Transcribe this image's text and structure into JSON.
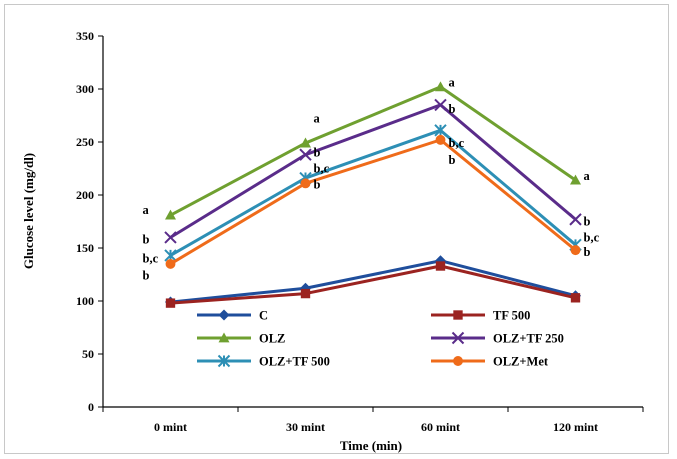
{
  "chart_data": {
    "type": "line",
    "title": "",
    "xlabel": "Time (min)",
    "ylabel": "Glucose level (mg/dl)",
    "categories": [
      "0 mint",
      "30 mint",
      "60 mint",
      "120 mint"
    ],
    "ylim": [
      0,
      350
    ],
    "yticks": [
      0,
      50,
      100,
      150,
      200,
      250,
      300,
      350
    ],
    "grid": false,
    "legend_position": "bottom",
    "series": [
      {
        "name": "C",
        "color": "#1f4e9c",
        "marker": "diamond",
        "values": [
          99,
          112,
          138,
          105
        ]
      },
      {
        "name": "TF 500",
        "color": "#9b2320",
        "marker": "square",
        "values": [
          98,
          107,
          133,
          103
        ]
      },
      {
        "name": "OLZ",
        "color": "#6fa030",
        "marker": "triangle",
        "values": [
          181,
          249,
          302,
          214
        ]
      },
      {
        "name": "OLZ+TF 250",
        "color": "#5a2c8a",
        "marker": "x",
        "values": [
          160,
          238,
          285,
          177
        ]
      },
      {
        "name": "OLZ+TF 500",
        "color": "#2d8fb5",
        "marker": "star",
        "values": [
          143,
          216,
          261,
          153
        ]
      },
      {
        "name": "OLZ+Met",
        "color": "#ef6b1a",
        "marker": "circle",
        "values": [
          135,
          211,
          252,
          148
        ]
      }
    ],
    "annotations": [
      {
        "text": "a",
        "category": "0 mint",
        "y": 186
      },
      {
        "text": "b",
        "category": "0 mint",
        "y": 158
      },
      {
        "text": "b,c",
        "category": "0 mint",
        "y": 140
      },
      {
        "text": "b",
        "category": "0 mint",
        "y": 124
      },
      {
        "text": "a",
        "category": "30 mint",
        "y": 272
      },
      {
        "text": "b",
        "category": "30 mint",
        "y": 240
      },
      {
        "text": "b,c",
        "category": "30 mint",
        "y": 225
      },
      {
        "text": "b",
        "category": "30 mint",
        "y": 210
      },
      {
        "text": "a",
        "category": "60 mint",
        "y": 306
      },
      {
        "text": "b",
        "category": "60 mint",
        "y": 281
      },
      {
        "text": "b,c",
        "category": "60 mint",
        "y": 249
      },
      {
        "text": "b",
        "category": "60 mint",
        "y": 233
      },
      {
        "text": "a",
        "category": "120 mint",
        "y": 218
      },
      {
        "text": "b",
        "category": "120 mint",
        "y": 175
      },
      {
        "text": "b,c",
        "category": "120 mint",
        "y": 160
      },
      {
        "text": "b",
        "category": "120 mint",
        "y": 146
      }
    ]
  }
}
